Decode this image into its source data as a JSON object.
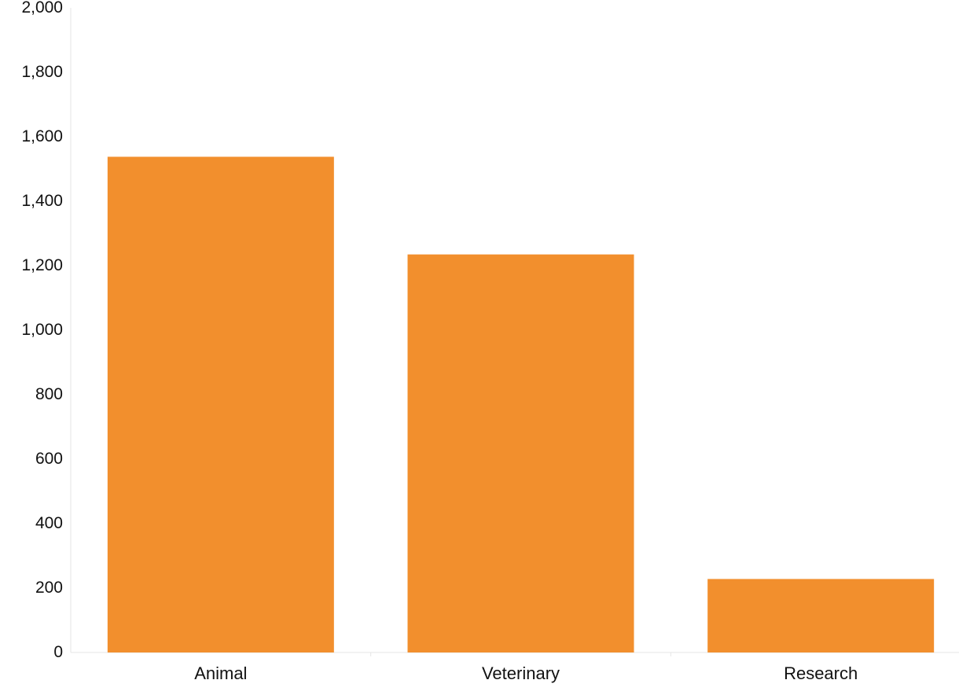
{
  "chart_data": {
    "type": "bar",
    "categories": [
      "Animal",
      "Veterinary",
      "Research"
    ],
    "series": [
      {
        "values": [
          1538,
          1235,
          228
        ]
      }
    ],
    "title": "",
    "xlabel": "",
    "ylabel": "",
    "ylim": [
      0,
      2000
    ],
    "yticks": [
      0,
      200,
      400,
      600,
      800,
      1000,
      1200,
      1400,
      1600,
      1800,
      2000
    ],
    "ytick_labels": [
      "0",
      "200",
      "400",
      "600",
      "800",
      "1,000",
      "1,200",
      "1,400",
      "1,600",
      "1,800",
      "2,000"
    ],
    "bar_color": "#F28F2D",
    "axis_color": "#E6E6E6",
    "grid": false,
    "legend": "none"
  }
}
